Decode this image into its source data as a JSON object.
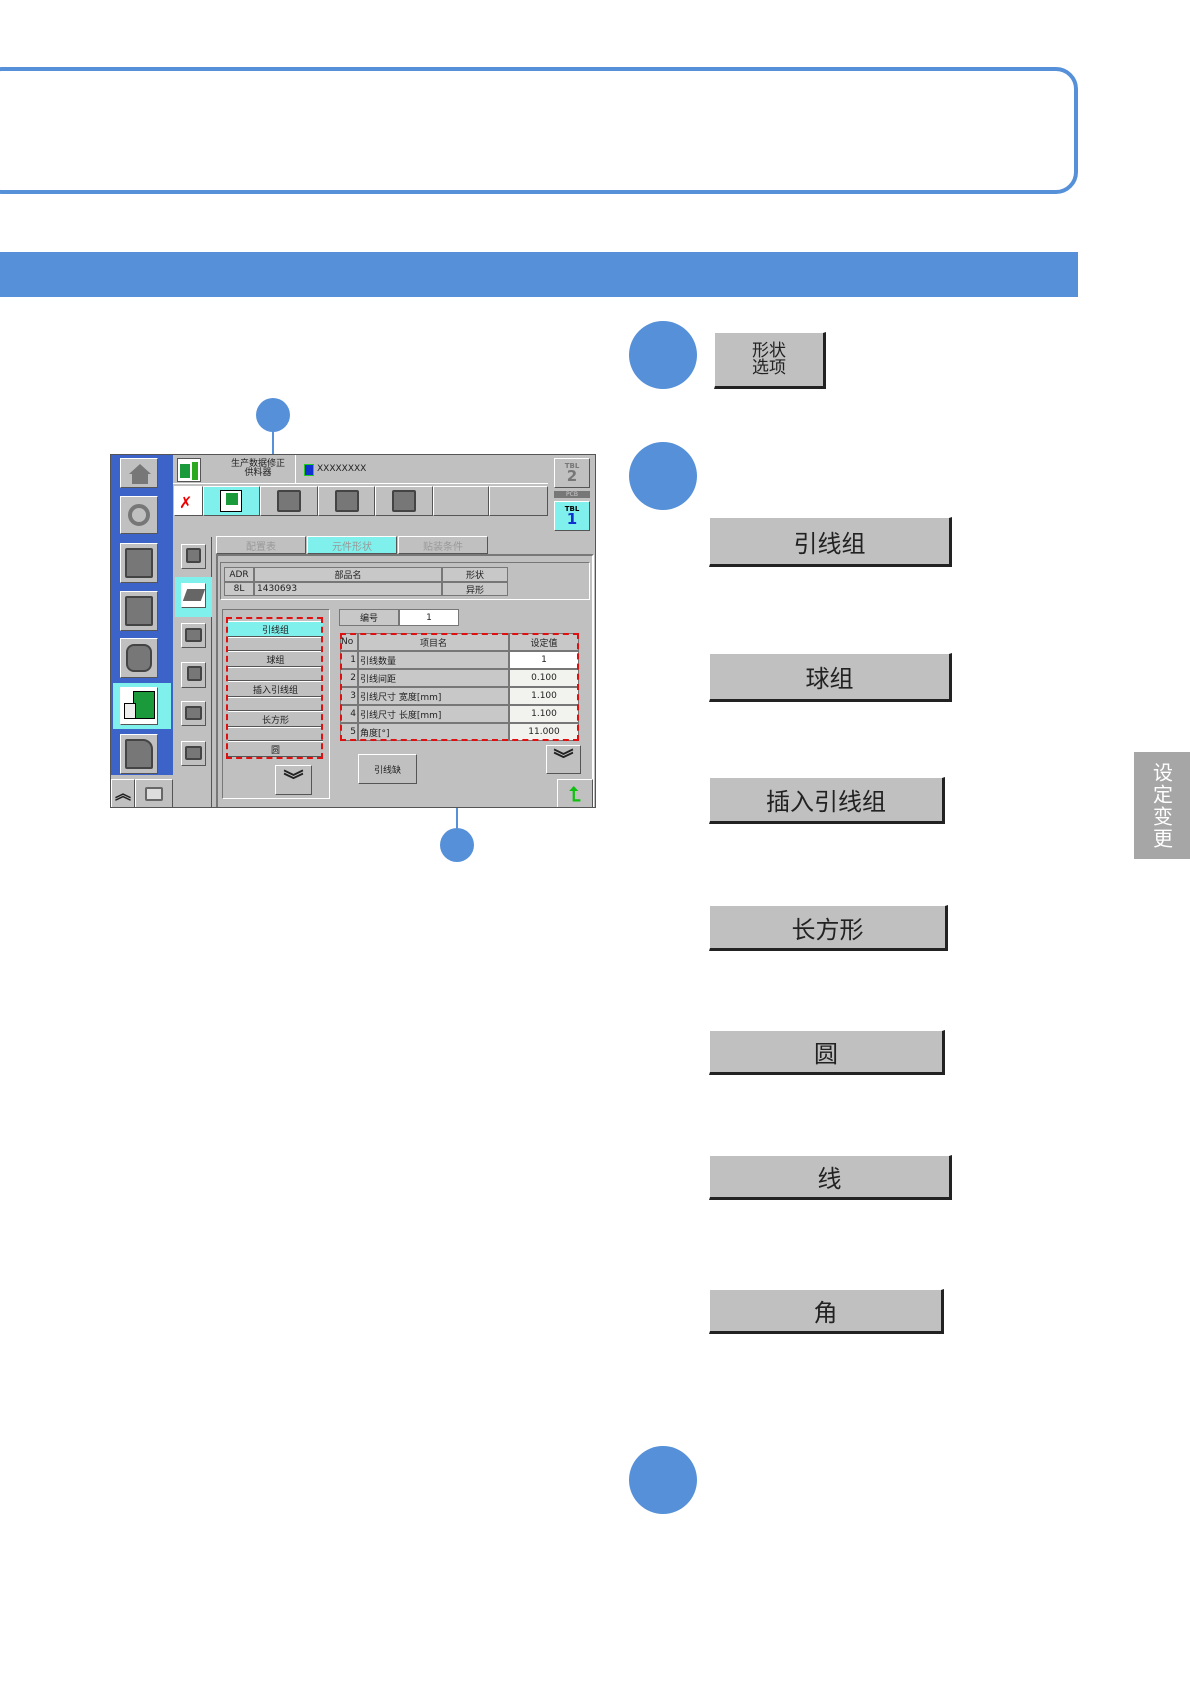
{
  "accent": "#5590d8",
  "step_buttons": {
    "shape_option": "形状\n选项"
  },
  "shape_buttons": [
    "引线组",
    "球组",
    "插入引线组",
    "长方形",
    "圆",
    "线",
    "角"
  ],
  "side_tab": "设定变更",
  "screen": {
    "header_title_line1": "生产数据修正",
    "header_title_line2": "供料器",
    "file_name": "XXXXXXXX",
    "tbl2": {
      "label": "TBL",
      "num": "2"
    },
    "pcb_label": "PCB",
    "tbl1": {
      "label": "TBL",
      "num": "1"
    },
    "tabs": [
      "配置表",
      "元件形状",
      "贴装条件"
    ],
    "info_headers": [
      "ADR",
      "部品名",
      "形状"
    ],
    "info_values": [
      "8L",
      "1430693",
      "异形"
    ],
    "shape_list": [
      "引线组",
      "",
      "球组",
      "",
      "插入引线组",
      "",
      "长方形",
      "",
      "圆"
    ],
    "number_label": "编号",
    "number_value": "1",
    "param_headers": [
      "No",
      "项目名",
      "设定值"
    ],
    "params": [
      {
        "no": "1",
        "name": "引线数量",
        "value": "1"
      },
      {
        "no": "2",
        "name": "引线间距",
        "value": "0.100"
      },
      {
        "no": "3",
        "name": "引线尺寸  宽度[mm]",
        "value": "1.100"
      },
      {
        "no": "4",
        "name": "引线尺寸  长度[mm]",
        "value": "1.100"
      },
      {
        "no": "5",
        "name": "角度[°]",
        "value": "11.000"
      }
    ],
    "lead_missing_button": "引线缺"
  }
}
